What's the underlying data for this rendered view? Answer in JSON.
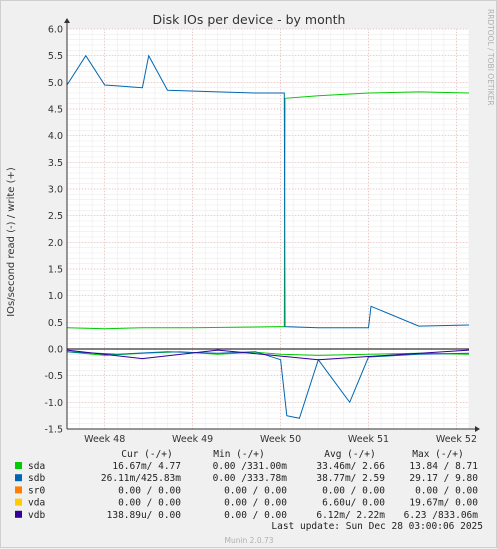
{
  "chart_data": {
    "type": "line",
    "title": "Disk IOs per device - by month",
    "ylabel": "IOs/second read (-) / write (+)",
    "side_label": "RRDTOOL / TOBI OETIKER",
    "ylim": [
      -1.5,
      6.0
    ],
    "y_ticks": [
      "6.0",
      "5.5",
      "5.0",
      "4.5",
      "4.0",
      "3.5",
      "3.0",
      "2.5",
      "2.0",
      "1.5",
      "1.0",
      "0.5",
      "0.0",
      "-0.5",
      "-1.0",
      "-1.5"
    ],
    "y_tick_values": [
      6.0,
      5.5,
      5.0,
      4.5,
      4.0,
      3.5,
      3.0,
      2.5,
      2.0,
      1.5,
      1.0,
      0.5,
      0.0,
      -0.5,
      -1.0,
      -1.5
    ],
    "x_range": [
      0,
      32
    ],
    "x_ticks": [
      {
        "label": "Week 48",
        "x": 3
      },
      {
        "label": "Week 49",
        "x": 10
      },
      {
        "label": "Week 50",
        "x": 17
      },
      {
        "label": "Week 51",
        "x": 24
      },
      {
        "label": "Week 52",
        "x": 31
      }
    ],
    "series": [
      {
        "name": "sda",
        "color": "#00cc00",
        "write": [
          [
            0,
            0.4
          ],
          [
            3,
            0.38
          ],
          [
            6,
            0.4
          ],
          [
            10,
            0.4
          ],
          [
            14,
            0.41
          ],
          [
            17,
            0.42
          ],
          [
            17.3,
            0.42
          ],
          [
            17.35,
            4.7
          ],
          [
            20,
            4.75
          ],
          [
            24,
            4.8
          ],
          [
            28,
            4.82
          ],
          [
            32,
            4.8
          ]
        ],
        "read": [
          [
            0,
            -0.05
          ],
          [
            3,
            -0.12
          ],
          [
            6,
            -0.08
          ],
          [
            9,
            -0.05
          ],
          [
            12,
            -0.1
          ],
          [
            15,
            -0.06
          ],
          [
            17,
            -0.1
          ],
          [
            20,
            -0.12
          ],
          [
            24,
            -0.1
          ],
          [
            28,
            -0.08
          ],
          [
            32,
            -0.1
          ]
        ]
      },
      {
        "name": "sdb",
        "color": "#0066b3",
        "write": [
          [
            0,
            4.95
          ],
          [
            1.5,
            5.5
          ],
          [
            3,
            4.95
          ],
          [
            6,
            4.9
          ],
          [
            6.5,
            5.5
          ],
          [
            8,
            4.85
          ],
          [
            12,
            4.82
          ],
          [
            15,
            4.8
          ],
          [
            17.3,
            4.8
          ],
          [
            17.35,
            0.42
          ],
          [
            20,
            0.4
          ],
          [
            24,
            0.4
          ],
          [
            24.2,
            0.8
          ],
          [
            28,
            0.43
          ],
          [
            32,
            0.45
          ]
        ],
        "read": [
          [
            0,
            -0.05
          ],
          [
            4,
            -0.1
          ],
          [
            8,
            -0.05
          ],
          [
            12,
            -0.08
          ],
          [
            15,
            -0.05
          ],
          [
            17,
            -0.2
          ],
          [
            17.5,
            -1.25
          ],
          [
            18.5,
            -1.3
          ],
          [
            20,
            -0.2
          ],
          [
            22.5,
            -1.0
          ],
          [
            24,
            -0.15
          ],
          [
            28,
            -0.1
          ],
          [
            32,
            -0.08
          ]
        ]
      },
      {
        "name": "sr0",
        "color": "#ff8000",
        "write": [
          [
            0,
            0
          ],
          [
            32,
            0
          ]
        ],
        "read": [
          [
            0,
            0
          ],
          [
            32,
            0
          ]
        ]
      },
      {
        "name": "vda",
        "color": "#ffcc00",
        "write": [
          [
            0,
            0
          ],
          [
            32,
            0
          ]
        ],
        "read": [
          [
            0,
            0
          ],
          [
            32,
            0
          ]
        ]
      },
      {
        "name": "vdb",
        "color": "#330099",
        "write": [
          [
            0,
            0
          ],
          [
            32,
            0
          ]
        ],
        "read": [
          [
            0,
            -0.02
          ],
          [
            6,
            -0.18
          ],
          [
            12,
            -0.02
          ],
          [
            20,
            -0.2
          ],
          [
            32,
            -0.02
          ]
        ]
      }
    ]
  },
  "legend": {
    "headers": [
      "Cur (-/+)",
      "Min (-/+)",
      "Avg (-/+)",
      "Max (-/+)"
    ],
    "rows": [
      {
        "name": "sda",
        "color": "#00cc00",
        "cur": "16.67m/  4.77",
        "min": "0.00 /331.00m",
        "avg": "33.46m/  2.66",
        "max": "13.84 /  8.71"
      },
      {
        "name": "sdb",
        "color": "#0066b3",
        "cur": "26.11m/425.83m",
        "min": "0.00 /333.78m",
        "avg": "38.77m/  2.59",
        "max": "29.17 /  9.80"
      },
      {
        "name": "sr0",
        "color": "#ff8000",
        "cur": "0.00 /  0.00",
        "min": "0.00 /  0.00",
        "avg": "0.00 /  0.00",
        "max": "0.00 /  0.00"
      },
      {
        "name": "vda",
        "color": "#ffcc00",
        "cur": "0.00 /  0.00",
        "min": "0.00 /  0.00",
        "avg": "6.60u/  0.00",
        "max": "19.67m/  0.00"
      },
      {
        "name": "vdb",
        "color": "#330099",
        "cur": "138.89u/  0.00",
        "min": "0.00 /  0.00",
        "avg": "6.12m/  2.22m",
        "max": "6.23 /833.06m"
      }
    ]
  },
  "last_update": "Last update: Sun Dec 28 03:00:06 2025",
  "footer": "Munin 2.0.73"
}
